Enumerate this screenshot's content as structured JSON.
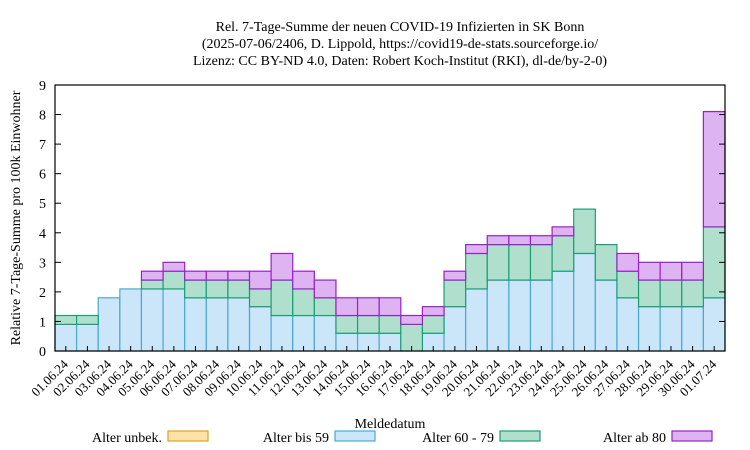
{
  "chart_data": {
    "type": "bar",
    "stacked": true,
    "title": [
      "Rel. 7-Tage-Summe der neuen COVID-19 Infizierten in SK Bonn",
      "(2025-07-06/2406, D. Lippold, https://covid19-de-stats.sourceforge.io/",
      "Lizenz: CC BY-ND 4.0, Daten: Robert Koch-Institut (RKI), dl-de/by-2-0)"
    ],
    "xlabel": "Meldedatum",
    "ylabel": "Relative 7-Tage-Summe pro 100k Einwohner",
    "ylim": [
      0,
      9
    ],
    "yticks": [
      "0",
      "1",
      "2",
      "3",
      "4",
      "5",
      "6",
      "7",
      "8",
      "9"
    ],
    "grid": false,
    "legend_position": "bottom",
    "categories": [
      "01.06.24",
      "02.06.24",
      "03.06.24",
      "04.06.24",
      "05.06.24",
      "06.06.24",
      "07.06.24",
      "08.06.24",
      "09.06.24",
      "10.06.24",
      "11.06.24",
      "12.06.24",
      "13.06.24",
      "14.06.24",
      "15.06.24",
      "16.06.24",
      "17.06.24",
      "18.06.24",
      "19.06.24",
      "20.06.24",
      "21.06.24",
      "22.06.24",
      "23.06.24",
      "24.06.24",
      "25.06.24",
      "26.06.24",
      "27.06.24",
      "28.06.24",
      "29.06.24",
      "30.06.24",
      "01.07.24"
    ],
    "series": [
      {
        "name": "Alter unbek.",
        "fill": "#fde3a7",
        "stroke": "#e0a020",
        "values": [
          0,
          0,
          0,
          0,
          0,
          0,
          0,
          0,
          0,
          0,
          0,
          0,
          0,
          0,
          0,
          0,
          0,
          0,
          0,
          0,
          0,
          0,
          0,
          0,
          0,
          0,
          0,
          0,
          0,
          0,
          0
        ]
      },
      {
        "name": "Alter bis 59",
        "fill": "#cbe6f8",
        "stroke": "#4aa8d8",
        "values": [
          0.9,
          0.9,
          1.8,
          2.1,
          2.1,
          2.1,
          1.8,
          1.8,
          1.8,
          1.5,
          1.2,
          1.2,
          1.2,
          0.6,
          0.6,
          0.6,
          0,
          0.6,
          1.5,
          2.1,
          2.4,
          2.4,
          2.4,
          2.7,
          3.3,
          2.4,
          1.8,
          1.5,
          1.5,
          1.5,
          1.8
        ]
      },
      {
        "name": "Alter 60 - 79",
        "fill": "#b0e0cd",
        "stroke": "#1a9e74",
        "values": [
          0.3,
          0.3,
          0,
          0,
          0.3,
          0.6,
          0.6,
          0.6,
          0.6,
          0.6,
          1.2,
          0.9,
          0.6,
          0.6,
          0.6,
          0.6,
          0.9,
          0.6,
          0.9,
          1.2,
          1.2,
          1.2,
          1.2,
          1.2,
          1.5,
          1.2,
          0.9,
          0.9,
          0.9,
          0.9,
          2.4
        ]
      },
      {
        "name": "Alter ab 80",
        "fill": "#deb3f2",
        "stroke": "#9a20c8",
        "values": [
          0,
          0,
          0,
          0,
          0.3,
          0.3,
          0.3,
          0.3,
          0.3,
          0.6,
          0.9,
          0.6,
          0.6,
          0.6,
          0.6,
          0.6,
          0.3,
          0.3,
          0.3,
          0.3,
          0.3,
          0.3,
          0.3,
          0.3,
          0,
          0,
          0.6,
          0.6,
          0.6,
          0.6,
          3.9
        ]
      }
    ]
  }
}
